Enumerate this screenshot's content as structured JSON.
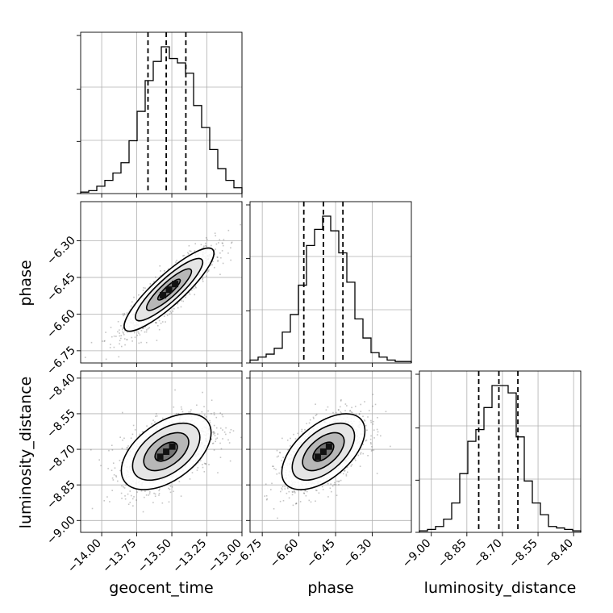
{
  "chart_data": {
    "type": "corner",
    "parameters": [
      {
        "name": "geocent_time",
        "label": "geocent_time",
        "range": [
          -14.15,
          -13.0
        ],
        "ticks": [
          -14.0,
          -13.75,
          -13.5,
          -13.25,
          -13.0
        ],
        "tick_labels": [
          "−14.00",
          "−13.75",
          "−13.50",
          "−13.25",
          "−13.00"
        ],
        "quantiles": [
          -13.67,
          -13.54,
          -13.4
        ]
      },
      {
        "name": "phase",
        "label": "phase",
        "range": [
          -6.8,
          -6.14
        ],
        "ticks": [
          -6.75,
          -6.6,
          -6.45,
          -6.3
        ],
        "tick_labels": [
          "−6.75",
          "−6.60",
          "−6.45",
          "−6.30"
        ],
        "quantiles": [
          -6.58,
          -6.5,
          -6.42
        ]
      },
      {
        "name": "luminosity_distance",
        "label": "luminosity_distance",
        "range": [
          -9.05,
          -8.37
        ],
        "ticks": [
          -9.0,
          -8.85,
          -8.7,
          -8.55,
          -8.4
        ],
        "tick_labels": [
          "−9.00",
          "−8.85",
          "−8.70",
          "−8.55",
          "−8.40"
        ],
        "quantiles": [
          -8.8,
          -8.715,
          -8.635
        ]
      }
    ],
    "histograms": [
      {
        "param": "geocent_time",
        "bin_start": -14.15,
        "bin_width": 0.0575,
        "counts": [
          1,
          2,
          5,
          9,
          14,
          21,
          36,
          56,
          77,
          90,
          100,
          92,
          89,
          82,
          60,
          45,
          30,
          17,
          9,
          4
        ]
      },
      {
        "param": "phase",
        "bin_start": -6.8,
        "bin_width": 0.033,
        "counts": [
          2,
          4,
          6,
          10,
          21,
          33,
          53,
          80,
          91,
          100,
          90,
          75,
          55,
          30,
          17,
          7,
          4,
          2,
          1,
          1
        ]
      },
      {
        "param": "luminosity_distance",
        "bin_start": -9.05,
        "bin_width": 0.034,
        "counts": [
          1,
          2,
          4,
          9,
          20,
          40,
          62,
          70,
          85,
          100,
          100,
          95,
          65,
          35,
          20,
          12,
          4,
          3,
          2,
          1
        ]
      }
    ],
    "pairs": [
      {
        "x": "geocent_time",
        "y": "phase",
        "mean": [
          -13.52,
          -6.5
        ],
        "sx": 0.16,
        "sy": 0.085,
        "rho": 0.88
      },
      {
        "x": "geocent_time",
        "y": "luminosity_distance",
        "mean": [
          -13.54,
          -8.71
        ],
        "sx": 0.16,
        "sy": 0.08,
        "rho": 0.5
      },
      {
        "x": "phase",
        "y": "luminosity_distance",
        "mean": [
          -6.5,
          -8.71
        ],
        "sx": 0.085,
        "sy": 0.08,
        "rho": 0.55
      }
    ],
    "contour_levels_sigma": [
      0.5,
      1.0,
      1.5,
      2.0
    ],
    "grid": true
  }
}
